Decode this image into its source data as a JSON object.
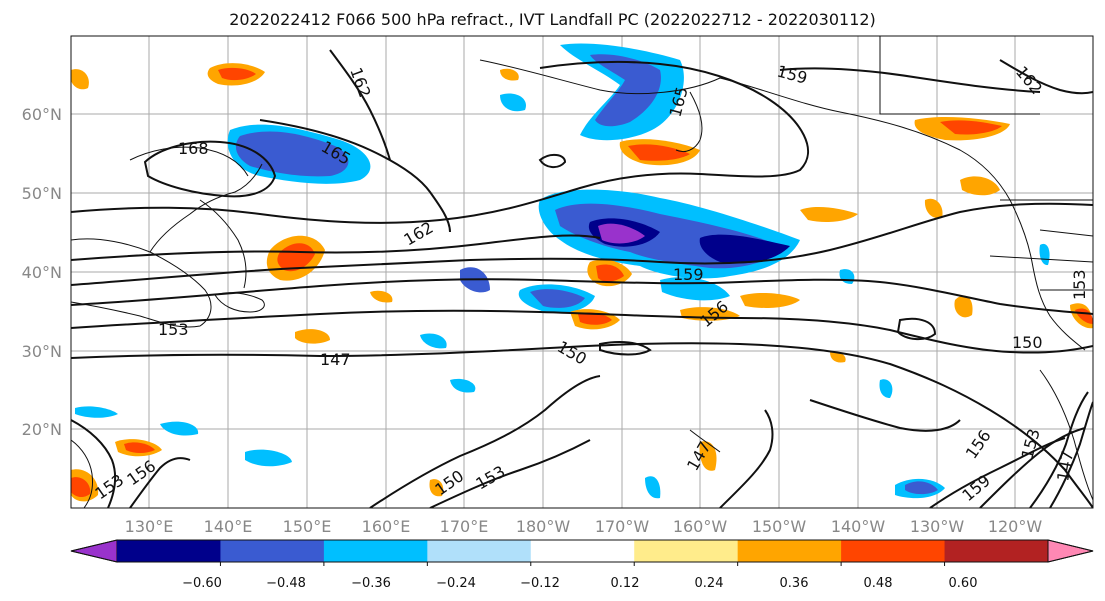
{
  "title": "2022022412 F066 500 hPa refract., IVT Landfall PC (2022022712 - 2022030112)",
  "lat_labels": [
    "60°N",
    "50°N",
    "40°N",
    "30°N",
    "20°N"
  ],
  "lon_labels": [
    "130°E",
    "140°E",
    "150°E",
    "160°E",
    "170°E",
    "180°W",
    "170°W",
    "160°W",
    "150°W",
    "140°W",
    "130°W",
    "120°W"
  ],
  "contour_labels": [
    "162",
    "159",
    "165",
    "162",
    "165",
    "168",
    "162",
    "159",
    "156",
    "153",
    "147",
    "150",
    "150",
    "153",
    "150",
    "156",
    "147",
    "156",
    "153",
    "159",
    "147",
    "153",
    "153"
  ],
  "colorbar": {
    "ticks": [
      "−0.60",
      "−0.48",
      "−0.36",
      "−0.24",
      "−0.12",
      "0.12",
      "0.24",
      "0.36",
      "0.48",
      "0.60"
    ],
    "colors": [
      "#9932cc",
      "#00008b",
      "#3a5bd1",
      "#00bfff",
      "#b0e0fa",
      "#ffffff",
      "#ffec8b",
      "#ffa500",
      "#ff4500",
      "#b22222",
      "#ff88b4"
    ]
  }
}
